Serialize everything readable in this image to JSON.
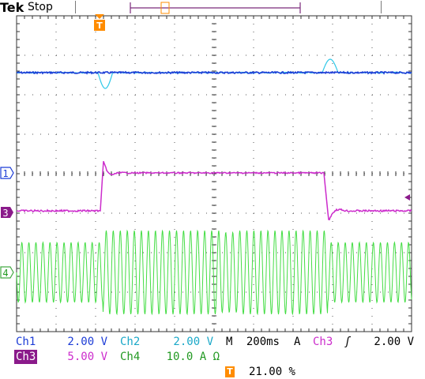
{
  "header": {
    "brand": "Tek",
    "status": "Stop"
  },
  "markers": {
    "ch1": "1",
    "ch3": "3",
    "ch4": "4",
    "trigger": "T"
  },
  "readouts": {
    "ch1_label": "Ch1",
    "ch1_scale": "2.00 V",
    "ch2_label": "Ch2",
    "ch2_scale": "2.00 V",
    "ch3_label": "Ch3",
    "ch3_scale": "5.00 V",
    "ch4_label": "Ch4",
    "ch4_scale": "10.0 A Ω",
    "timebase_prefix": "M",
    "timebase": "200ms",
    "trigger_mode": "A",
    "trigger_source": "Ch3",
    "trigger_slope": "ʃ",
    "trigger_level": "2.00 V",
    "trigger_position": "21.00 %"
  },
  "colors": {
    "ch1": "#1c3cd6",
    "ch2": "#2ec8e8",
    "ch3": "#cc2ccc",
    "ch4": "#44dd44",
    "ch3_label_bg": "#8a1a8a",
    "trigger": "#ff8c00",
    "grid": "#333333",
    "readout_bg": "#ffffff"
  },
  "icons": {
    "trigger_marker": "trigger-t-icon",
    "trigger_level": "trigger-level-arrow-icon",
    "slope": "rising-edge-icon"
  }
}
